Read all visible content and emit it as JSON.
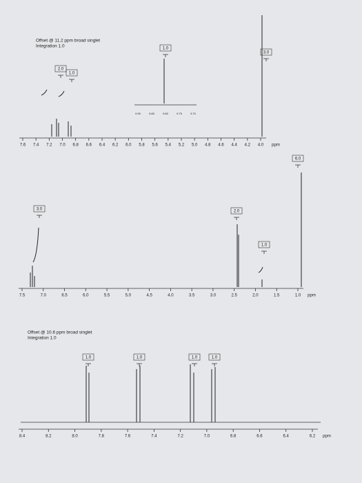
{
  "panels": [
    {
      "note": "Offset @ 11.2 ppm broad singlet",
      "integration": "Integration 1.0",
      "integrals": [
        "2.0",
        "1.0",
        "1.0",
        "3.0"
      ],
      "inset_ticks": [
        "9.90",
        "9.85",
        "9.80",
        "9.75",
        "9.70"
      ],
      "ticks": [
        "7.6",
        "7.4",
        "7.2",
        "7.0",
        "6.8",
        "6.6",
        "6.4",
        "6.2",
        "6.0",
        "5.8",
        "5.6",
        "5.4",
        "5.2",
        "5.0",
        "4.8",
        "4.6",
        "4.4",
        "4.2",
        "4.0"
      ],
      "unit": "ppm"
    },
    {
      "integrals": [
        "3.0",
        "2.0",
        "1.0",
        "6.0"
      ],
      "ticks": [
        "7.5",
        "7.0",
        "6.5",
        "6.0",
        "5.5",
        "5.0",
        "4.5",
        "4.0",
        "3.5",
        "3.0",
        "2.5",
        "2.0",
        "1.5",
        "1.0"
      ],
      "unit": "ppm"
    },
    {
      "note": "Offset @ 10.6 ppm broad singlet",
      "integration": "Integration 1.0",
      "integrals": [
        "1.0",
        "1.0",
        "1.0",
        "1.0"
      ],
      "ticks": [
        "8.4",
        "8.2",
        "8.0",
        "7.8",
        "7.6",
        "7.4",
        "7.2",
        "7.0",
        "6.8",
        "6.6",
        "6.4",
        "6.2"
      ],
      "unit": "ppm"
    }
  ]
}
